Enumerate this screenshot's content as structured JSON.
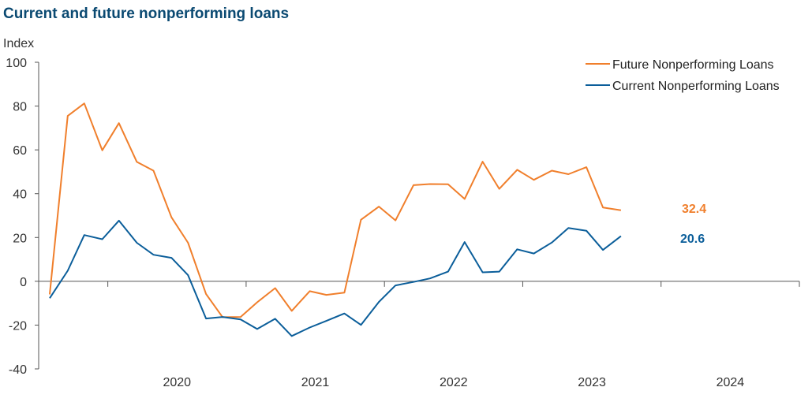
{
  "chart_data": {
    "type": "line",
    "title": "Current and future nonperforming loans",
    "ylabel": "Index",
    "xlabel": "",
    "ylim": [
      -40,
      100
    ],
    "yticks": [
      -40,
      -20,
      0,
      20,
      40,
      60,
      80,
      100
    ],
    "xlim": [
      2019.5,
      2025.0
    ],
    "year_labels": [
      "2020",
      "2021",
      "2022",
      "2023",
      "2024"
    ],
    "grid": false,
    "legend": "top-right",
    "series": [
      {
        "name": "Future Nonperforming Loans",
        "color": "#f07f2c",
        "end_label": "32.4",
        "x": [
          2019.58,
          2019.71,
          2019.83,
          2019.96,
          2020.08,
          2020.21,
          2020.33,
          2020.46,
          2020.58,
          2020.71,
          2020.83,
          2020.96,
          2021.08,
          2021.21,
          2021.33,
          2021.46,
          2021.58,
          2021.71,
          2021.83,
          2021.96,
          2022.08,
          2022.21,
          2022.33,
          2022.46,
          2022.58,
          2022.71,
          2022.83,
          2022.96,
          2023.08,
          2023.21,
          2023.33,
          2023.46,
          2023.58,
          2023.71
        ],
        "values": [
          -6,
          75.5,
          81.2,
          59.8,
          72.2,
          54.5,
          50.5,
          29.2,
          17.6,
          -5.8,
          -16.4,
          -16.3,
          -9.6,
          -3.1,
          -13.5,
          -4.5,
          -6.2,
          -5.2,
          28.1,
          34.1,
          27.8,
          43.9,
          44.4,
          44.3,
          37.6,
          54.6,
          42.2,
          50.9,
          46.3,
          50.5,
          48.9,
          52.1,
          33.7,
          32.4
        ]
      },
      {
        "name": "Current Nonperforming Loans",
        "color": "#0b5e9a",
        "end_label": "20.6",
        "x": [
          2019.58,
          2019.71,
          2019.83,
          2019.96,
          2020.08,
          2020.21,
          2020.33,
          2020.46,
          2020.58,
          2020.71,
          2020.83,
          2020.96,
          2021.08,
          2021.21,
          2021.33,
          2021.46,
          2021.58,
          2021.71,
          2021.83,
          2021.96,
          2022.08,
          2022.21,
          2022.33,
          2022.46,
          2022.58,
          2022.71,
          2022.83,
          2022.96,
          2023.08,
          2023.21,
          2023.33,
          2023.46,
          2023.58,
          2023.71
        ],
        "values": [
          -7.7,
          4.8,
          21.1,
          19.2,
          27.7,
          17.6,
          12.1,
          10.7,
          2.8,
          -17,
          -16.3,
          -17.4,
          -21.8,
          -17.1,
          -25,
          -21.1,
          -18.1,
          -14.7,
          -19.9,
          -9.4,
          -1.9,
          -0.3,
          1.3,
          4.4,
          17.9,
          4.1,
          4.4,
          14.6,
          12.7,
          17.7,
          24.3,
          23.1,
          14.3,
          20.6
        ]
      }
    ]
  }
}
